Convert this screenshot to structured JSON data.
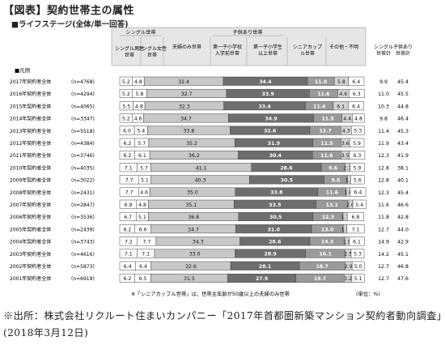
{
  "title": "【図表】契約世帯主の属性",
  "subtitle": "■ライフステージ(全体/単一回答)",
  "source_note": "※出所：株式会社リクルート住まいカンパニー「2017年首都圏新築マンション契約者動向調査」(2018年3月12日)",
  "legend_label": "■凡例",
  "footnote": "※「シニアカップル世帯」は、世帯主年齢が50歳以上の夫婦のみ世帯",
  "unit_note": "(単位：%)",
  "group_headers": {
    "single": "シングル世帯",
    "children": "子供あり世帯"
  },
  "column_headers": [
    "シングル男性世帯",
    "シングル女性世帯",
    "夫婦のみ世帯",
    "第一子小学校入学前世帯",
    "第一子小学生以上世帯",
    "シニアカップル世帯",
    "その他・不明"
  ],
  "summary_headers": [
    "シングル世帯計",
    "子供あり世帯計"
  ],
  "colors": {
    "single_male": "#ffffff",
    "single_female": "#ffffff",
    "couple": "#c8c8c8",
    "preschool": "#6e6e6e",
    "school": "#9a9a9a",
    "senior": "#d4d4d4",
    "other": "#ffffff",
    "header_bg": "#e6e6e6"
  },
  "chart_data": {
    "type": "bar",
    "orientation": "horizontal",
    "stacked": true,
    "percent_stacked": true,
    "xlim": [
      0,
      100
    ],
    "categories": [
      {
        "label": "2017年契約者全体",
        "n": "(n=4768)"
      },
      {
        "label": "2016年契約者全体",
        "n": "(n=4294)"
      },
      {
        "label": "2015年契約者全体",
        "n": "(n=4065)"
      },
      {
        "label": "2014年契約者全体",
        "n": "(n=3347)"
      },
      {
        "label": "2013年契約者全体",
        "n": "(n=5518)"
      },
      {
        "label": "2012年契約者全体",
        "n": "(n=4384)"
      },
      {
        "label": "2011年契約者全体",
        "n": "(n=3746)"
      },
      {
        "label": "2010年契約者全体",
        "n": "(n=4035)"
      },
      {
        "label": "2009年契約者全体",
        "n": "(n=3022)"
      },
      {
        "label": "2008年契約者全体",
        "n": "(n=2431)"
      },
      {
        "label": "2007年契約者全体",
        "n": "(n=2847)"
      },
      {
        "label": "2006年契約者全体",
        "n": "(n=3536)"
      },
      {
        "label": "2005年契約者全体",
        "n": "(n=2439)"
      },
      {
        "label": "2004年契約者全体",
        "n": "(n=3743)"
      },
      {
        "label": "2003年契約者全体",
        "n": "(n=4616)"
      },
      {
        "label": "2002年契約者全体",
        "n": "(n=5873)"
      },
      {
        "label": "2001年契約者全体",
        "n": "(n=6919)"
      }
    ],
    "series": [
      {
        "name": "シングル男性世帯",
        "color_key": "single_male",
        "values": [
          5.2,
          5.2,
          5.5,
          5.2,
          6.0,
          6.2,
          6.2,
          7.1,
          7.7,
          7.7,
          6.9,
          6.7,
          6.2,
          7.2,
          7.1,
          6.4,
          6.2
        ]
      },
      {
        "name": "シングル女性世帯",
        "color_key": "single_female",
        "values": [
          4.8,
          5.8,
          4.8,
          4.6,
          5.4,
          5.7,
          6.1,
          5.7,
          5.1,
          4.6,
          4.8,
          5.1,
          6.6,
          7.7,
          7.1,
          6.4,
          6.5
        ]
      },
      {
        "name": "夫婦のみ世帯",
        "color_key": "couple",
        "values": [
          32.4,
          32.7,
          32.3,
          34.7,
          33.8,
          35.2,
          36.2,
          41.1,
          40.3,
          35.0,
          35.1,
          36.8,
          34.7,
          34.3,
          33.0,
          32.6,
          31.5
        ]
      },
      {
        "name": "第一子小学校入学前世帯",
        "color_key": "preschool",
        "values": [
          34.4,
          33.9,
          33.4,
          34.9,
          32.6,
          31.9,
          30.4,
          28.6,
          30.5,
          33.8,
          33.5,
          30.5,
          31.0,
          28.6,
          28.9,
          28.1,
          27.9
        ]
      },
      {
        "name": "第一子小学生以上世帯",
        "color_key": "school",
        "values": [
          11.0,
          11.6,
          11.4,
          11.5,
          12.7,
          11.5,
          11.6,
          9.6,
          9.6,
          11.6,
          13.1,
          12.3,
          13.0,
          14.3,
          16.1,
          18.7,
          19.7
        ]
      },
      {
        "name": "シニアカップル世帯",
        "color_key": "senior",
        "values": [
          5.8,
          4.6,
          6.1,
          4.4,
          4.3,
          3.6,
          3.5,
          2.1,
          1.3,
          1.6,
          2.0,
          1.7,
          1.5,
          1.9,
          2.5,
          2.9,
          3.2
        ]
      },
      {
        "name": "その他・不明",
        "color_key": "other",
        "values": [
          6.4,
          6.3,
          6.4,
          4.8,
          5.3,
          5.9,
          6.3,
          5.9,
          5.6,
          6.4,
          5.4,
          6.8,
          7.1,
          6.1,
          5.3,
          5.0,
          5.1
        ]
      }
    ],
    "single_total": [
      9.9,
      11.0,
      10.3,
      9.8,
      11.4,
      11.9,
      12.3,
      12.8,
      12.8,
      12.3,
      11.6,
      11.8,
      12.7,
      14.9,
      14.2,
      12.7,
      12.7
    ],
    "children_total": [
      45.4,
      45.5,
      44.8,
      46.4,
      45.3,
      43.4,
      41.9,
      38.1,
      40.1,
      45.4,
      46.6,
      42.8,
      44.0,
      42.9,
      45.1,
      46.8,
      47.6
    ]
  }
}
